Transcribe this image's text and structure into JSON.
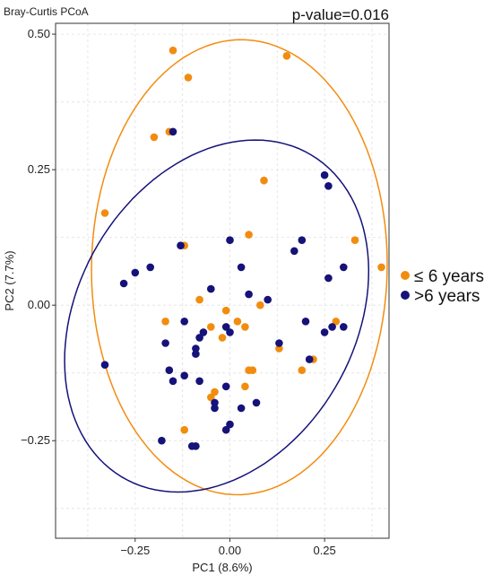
{
  "chart_data": {
    "type": "scatter",
    "title": "Bray-Curtis PCoA",
    "annotation": "p-value=0.016",
    "xlabel": "PC1 (8.6%)",
    "ylabel": "PC2 (7.7%)",
    "xlim": [
      -0.46,
      0.42
    ],
    "ylim": [
      -0.43,
      0.52
    ],
    "x_ticks": [
      {
        "value": -0.25,
        "label": "−0.25"
      },
      {
        "value": 0.0,
        "label": "0.00"
      },
      {
        "value": 0.25,
        "label": "0.25"
      }
    ],
    "y_ticks": [
      {
        "value": 0.5,
        "label": "0.50"
      },
      {
        "value": 0.25,
        "label": "0.25"
      },
      {
        "value": 0.0,
        "label": "0.00"
      },
      {
        "value": -0.25,
        "label": "−0.25"
      }
    ],
    "grid": true,
    "legend_position": "right",
    "series": [
      {
        "name": "≤ 6 years",
        "color": "#F28C0F",
        "points": [
          [
            -0.15,
            0.47
          ],
          [
            0.15,
            0.46
          ],
          [
            -0.11,
            0.42
          ],
          [
            -0.16,
            0.32
          ],
          [
            -0.2,
            0.31
          ],
          [
            -0.33,
            0.17
          ],
          [
            0.09,
            0.23
          ],
          [
            0.05,
            0.13
          ],
          [
            0.33,
            0.12
          ],
          [
            0.4,
            0.07
          ],
          [
            -0.12,
            0.11
          ],
          [
            0.26,
            0.05
          ],
          [
            -0.08,
            0.01
          ],
          [
            0.08,
            0.0
          ],
          [
            -0.01,
            -0.01
          ],
          [
            0.02,
            -0.03
          ],
          [
            -0.17,
            -0.03
          ],
          [
            -0.05,
            -0.04
          ],
          [
            0.04,
            -0.04
          ],
          [
            0.28,
            -0.03
          ],
          [
            -0.02,
            -0.06
          ],
          [
            0.13,
            -0.08
          ],
          [
            0.22,
            -0.1
          ],
          [
            0.19,
            -0.12
          ],
          [
            0.06,
            -0.12
          ],
          [
            0.05,
            -0.12
          ],
          [
            0.04,
            -0.15
          ],
          [
            -0.04,
            -0.16
          ],
          [
            -0.05,
            -0.17
          ],
          [
            -0.12,
            -0.23
          ]
        ]
      },
      {
        "name": ">6 years",
        "color": "#15127A",
        "points": [
          [
            -0.15,
            0.32
          ],
          [
            0.25,
            0.24
          ],
          [
            0.26,
            0.22
          ],
          [
            -0.13,
            0.11
          ],
          [
            0.0,
            0.12
          ],
          [
            0.19,
            0.12
          ],
          [
            0.17,
            0.1
          ],
          [
            -0.21,
            0.07
          ],
          [
            0.03,
            0.07
          ],
          [
            -0.25,
            0.06
          ],
          [
            0.3,
            0.07
          ],
          [
            -0.28,
            0.04
          ],
          [
            0.26,
            0.05
          ],
          [
            -0.05,
            0.03
          ],
          [
            0.05,
            0.02
          ],
          [
            0.1,
            0.01
          ],
          [
            -0.12,
            -0.03
          ],
          [
            0.2,
            -0.03
          ],
          [
            0.27,
            -0.04
          ],
          [
            0.3,
            -0.04
          ],
          [
            -0.01,
            -0.04
          ],
          [
            -0.07,
            -0.05
          ],
          [
            -0.08,
            -0.06
          ],
          [
            0.25,
            -0.05
          ],
          [
            0.0,
            -0.05
          ],
          [
            -0.17,
            -0.07
          ],
          [
            0.13,
            -0.07
          ],
          [
            -0.09,
            -0.08
          ],
          [
            -0.33,
            -0.11
          ],
          [
            0.21,
            -0.1
          ],
          [
            -0.16,
            -0.12
          ],
          [
            -0.09,
            -0.09
          ],
          [
            -0.12,
            -0.13
          ],
          [
            -0.15,
            -0.14
          ],
          [
            -0.08,
            -0.14
          ],
          [
            -0.01,
            -0.15
          ],
          [
            -0.04,
            -0.18
          ],
          [
            -0.04,
            -0.19
          ],
          [
            0.03,
            -0.19
          ],
          [
            0.07,
            -0.18
          ],
          [
            -0.01,
            -0.23
          ],
          [
            -0.18,
            -0.25
          ],
          [
            -0.09,
            -0.26
          ],
          [
            -0.1,
            -0.26
          ],
          [
            0.0,
            -0.22
          ]
        ]
      }
    ],
    "ellipses": [
      {
        "series": "≤ 6 years",
        "cx": 0.025,
        "cy": 0.07,
        "rx": 0.39,
        "ry": 0.42,
        "angle_deg": -5
      },
      {
        "series": ">6 years",
        "cx": -0.035,
        "cy": -0.02,
        "rx": 0.42,
        "ry": 0.3,
        "angle_deg": 25
      }
    ]
  }
}
